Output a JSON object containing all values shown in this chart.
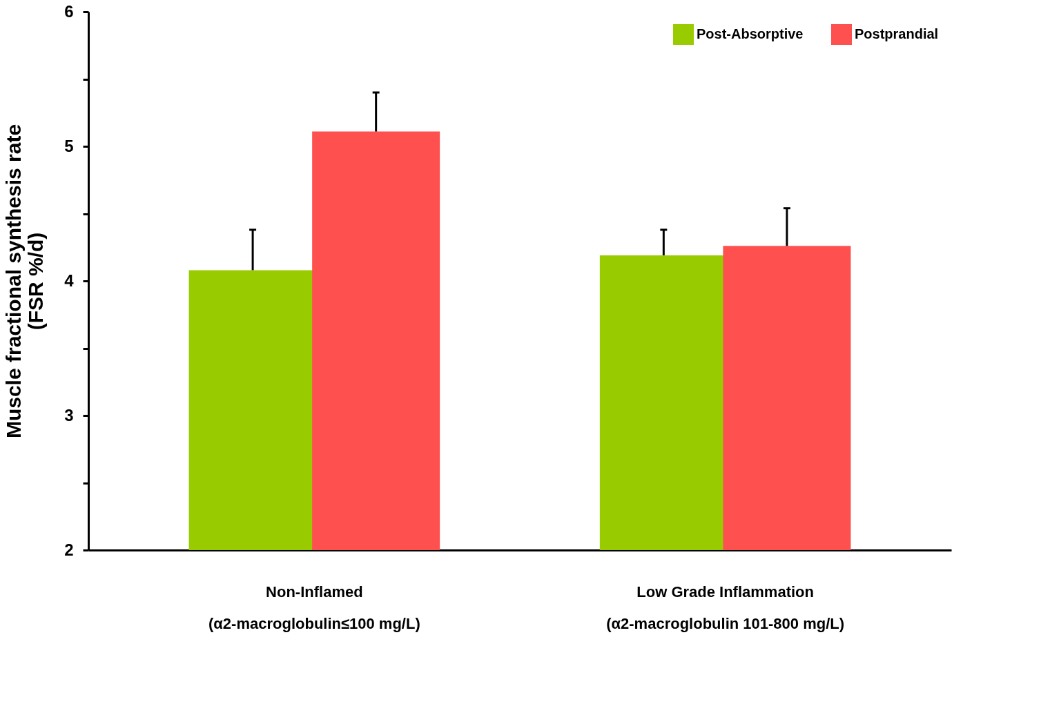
{
  "chart_data": {
    "type": "bar",
    "ylabel": "Muscle fractional synthesis rate\n(FSR %/d)",
    "categories": [
      "Non-Inflamed\n(α2-macroglobulin≤100 mg/L)",
      "Low Grade Inflammation\n(α2-macroglobulin 101-800 mg/L)"
    ],
    "series": [
      {
        "name": "Post-Absorptive",
        "color": "#99cc00",
        "values": [
          4.08,
          4.19
        ],
        "errors": [
          [
            4.08,
            4.38
          ],
          [
            4.19,
            4.38
          ]
        ]
      },
      {
        "name": "Postprandial",
        "color": "#ff5050",
        "values": [
          5.11,
          4.26
        ],
        "errors": [
          [
            5.11,
            5.4
          ],
          [
            4.26,
            4.54
          ]
        ]
      }
    ],
    "ylim": [
      2,
      6
    ],
    "yticks": [
      2,
      {
        "value": 2.5,
        "label": null
      },
      3,
      {
        "value": 3.5,
        "label": null
      },
      4,
      {
        "value": 4.5,
        "label": null
      },
      5,
      {
        "value": 5.5,
        "label": null
      },
      6
    ],
    "legend": "top right",
    "grid": false
  }
}
